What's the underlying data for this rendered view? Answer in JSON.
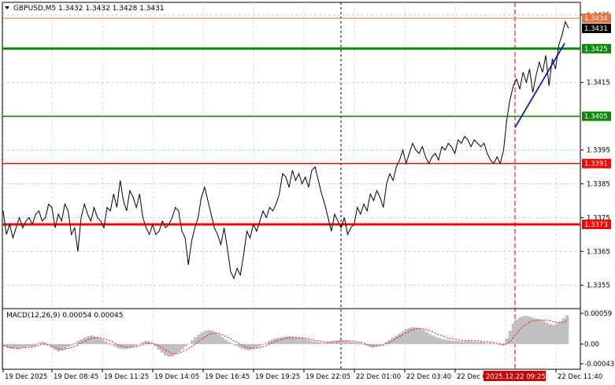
{
  "header": {
    "symbol_line": "GBPUSD,M5  1.3432 1.3432 1.3428 1.3431"
  },
  "macd": {
    "label": "MACD(12,26,9) 0.00054 0.00045",
    "ticks": [
      "0.00059",
      "0.00",
      "-0.00043"
    ]
  },
  "price_axis": {
    "ticks": [
      "1.3435",
      "1.3415",
      "1.3395",
      "1.3385",
      "1.3375",
      "1.3365",
      "1.3355"
    ]
  },
  "levels": [
    {
      "name": "ask",
      "value": "1.3434",
      "color": "#e8733a"
    },
    {
      "name": "bid",
      "value": "1.3431",
      "color": "#000000"
    },
    {
      "name": "resistance-green-top",
      "value": "1.3425",
      "color": "#0a8a0a"
    },
    {
      "name": "support-green",
      "value": "1.3405",
      "color": "#0a8a0a"
    },
    {
      "name": "support-red-top",
      "value": "1.3391",
      "color": "#ff0000"
    },
    {
      "name": "support-red-bottom",
      "value": "1.3373",
      "color": "#ff0000"
    }
  ],
  "time_axis": {
    "labels": [
      "19 Dec 2025",
      "19 Dec 08:45",
      "19 Dec 11:25",
      "19 Dec 14:05",
      "19 Dec 16:45",
      "19 Dec 19:25",
      "19 Dec 22:05",
      "22 Dec 01:00",
      "22 Dec 03:40",
      "22 Dec 06:20",
      "22 Dec 11:40"
    ],
    "highlight": "2025.12.22 09:25"
  },
  "chart_data": {
    "type": "line",
    "instrument": "GBPUSD",
    "timeframe": "M5",
    "ylim": [
      1.3349,
      1.3438
    ],
    "series": [
      {
        "values": [
          1.3377,
          1.337,
          1.3373,
          1.3369,
          1.3372,
          1.3375,
          1.3372,
          1.3374,
          1.3375,
          1.3373,
          1.3376,
          1.3377,
          1.3374,
          1.3375,
          1.3379,
          1.3378,
          1.3372,
          1.3376,
          1.3374,
          1.3379,
          1.3377,
          1.337,
          1.3372,
          1.3365,
          1.3375,
          1.3379,
          1.3376,
          1.3374,
          1.3378,
          1.3375,
          1.3374,
          1.3372,
          1.3378,
          1.3377,
          1.3382,
          1.3378,
          1.3386,
          1.338,
          1.3377,
          1.3383,
          1.3381,
          1.3378,
          1.3382,
          1.3375,
          1.3372,
          1.337,
          1.3373,
          1.337,
          1.3371,
          1.3374,
          1.3372,
          1.3373,
          1.3375,
          1.3378,
          1.3377,
          1.3371,
          1.3369,
          1.3361,
          1.3368,
          1.3372,
          1.3375,
          1.3381,
          1.3384,
          1.338,
          1.3376,
          1.3372,
          1.337,
          1.3367,
          1.3372,
          1.3366,
          1.3359,
          1.3357,
          1.336,
          1.3358,
          1.3364,
          1.3371,
          1.3369,
          1.3373,
          1.3371,
          1.3374,
          1.3377,
          1.3375,
          1.3378,
          1.3377,
          1.3379,
          1.3382,
          1.3388,
          1.3387,
          1.3384,
          1.3389,
          1.3386,
          1.3388,
          1.3385,
          1.3387,
          1.3384,
          1.3389,
          1.339,
          1.3386,
          1.3382,
          1.3379,
          1.3375,
          1.3371,
          1.3376,
          1.3374,
          1.3372,
          1.3375,
          1.337,
          1.3372,
          1.3373,
          1.3378,
          1.3376,
          1.3379,
          1.3377,
          1.3382,
          1.338,
          1.3383,
          1.3381,
          1.3378,
          1.3385,
          1.3388,
          1.3386,
          1.339,
          1.3392,
          1.3395,
          1.3391,
          1.3394,
          1.3397,
          1.3395,
          1.3394,
          1.3396,
          1.3393,
          1.3391,
          1.3393,
          1.3394,
          1.3392,
          1.3396,
          1.3395,
          1.3397,
          1.3396,
          1.3394,
          1.3398,
          1.3397,
          1.3399,
          1.3398,
          1.3396,
          1.3398,
          1.3397,
          1.3396,
          1.3397,
          1.3394,
          1.3392,
          1.3391,
          1.3393,
          1.3391,
          1.3395,
          1.3404,
          1.341,
          1.3414,
          1.3416,
          1.3413,
          1.3418,
          1.3415,
          1.3419,
          1.3412,
          1.3417,
          1.3421,
          1.3418,
          1.3423,
          1.3414,
          1.3422,
          1.3419,
          1.3426,
          1.3429,
          1.3433,
          1.3431
        ]
      }
    ],
    "macd_values": [
      -5e-05,
      -8e-05,
      -0.0001,
      -9e-05,
      -0.00011,
      -8e-05,
      -7e-05,
      -5e-05,
      -6e-05,
      -4e-05,
      2e-05,
      4e-05,
      3e-05,
      -2e-05,
      -8e-05,
      -0.00012,
      -0.00015,
      -0.00013,
      -0.0001,
      -6e-05,
      -3e-05,
      2e-05,
      6e-05,
      9e-05,
      0.00012,
      0.00015,
      0.00016,
      0.00014,
      0.00012,
      9e-05,
      5e-05,
      2e-05,
      -2e-05,
      -6e-05,
      -9e-05,
      -0.0001,
      -0.00011,
      -9e-05,
      -7e-05,
      -4e-05,
      -1e-05,
      3e-05,
      6e-05,
      5e-05,
      2e-05,
      -5e-05,
      -0.00012,
      -0.00018,
      -0.00024,
      -0.00027,
      -0.00026,
      -0.00022,
      -0.00017,
      -0.00011,
      -5e-05,
      1e-05,
      7e-05,
      0.00013,
      0.00018,
      0.00022,
      0.00025,
      0.00026,
      0.00025,
      0.00022,
      0.00018,
      0.00013,
      8e-05,
      4e-05,
      1e-05,
      -3e-05,
      -7e-05,
      -0.0001,
      -0.00012,
      -0.00013,
      -0.00011,
      -8e-05,
      -5e-05,
      -2e-05,
      2e-05,
      6e-05,
      9e-05,
      0.00011,
      0.00012,
      0.00013,
      0.00014,
      0.00015,
      0.00014,
      0.00013,
      0.00012,
      0.00011,
      9e-05,
      7e-05,
      5e-05,
      4e-05,
      3e-05,
      2e-05,
      3e-05,
      4e-05,
      5e-05,
      6e-05,
      7e-05,
      7e-05,
      6e-05,
      5e-05,
      4e-05,
      3e-05,
      2e-05,
      0.0,
      -3e-05,
      -6e-05,
      -8e-05,
      -6e-05,
      -3e-05,
      0.0,
      4e-05,
      8e-05,
      0.00012,
      0.00016,
      0.0002,
      0.00024,
      0.00028,
      0.0003,
      0.00032,
      0.00031,
      0.0003,
      0.00027,
      0.00023,
      0.00019,
      0.00016,
      0.00013,
      0.00011,
      9e-05,
      8e-05,
      7e-05,
      6e-05,
      6e-05,
      5e-05,
      5e-05,
      6e-05,
      6e-05,
      5e-05,
      4e-05,
      4e-05,
      3e-05,
      2e-05,
      2e-05,
      1e-05,
      0.0,
      -2e-05,
      -3e-05,
      0.0001,
      0.00025,
      0.00038,
      0.00046,
      0.0005,
      0.00052,
      0.00053,
      0.00051,
      0.00049,
      0.00047,
      0.00046,
      0.00044,
      0.0004,
      0.00037,
      0.00036,
      0.00038,
      0.00042,
      0.00048,
      0.00054
    ],
    "signal_values": [
      -4e-05,
      -5e-05,
      -7e-05,
      -8e-05,
      -9e-05,
      -9e-05,
      -8e-05,
      -7e-05,
      -7e-05,
      -6e-05,
      -4e-05,
      -2e-05,
      0.0,
      -1e-05,
      -3e-05,
      -6e-05,
      -9e-05,
      -0.00011,
      -0.00011,
      -0.0001,
      -8e-05,
      -6e-05,
      -3e-05,
      1e-05,
      4e-05,
      7e-05,
      0.0001,
      0.00012,
      0.00012,
      0.00012,
      0.0001,
      8e-05,
      6e-05,
      3e-05,
      0.0,
      -3e-05,
      -5e-05,
      -7e-05,
      -7e-05,
      -6e-05,
      -5e-05,
      -3e-05,
      -1e-05,
      1e-05,
      2e-05,
      1e-05,
      -2e-05,
      -6e-05,
      -0.0001,
      -0.00014,
      -0.00018,
      -0.0002,
      -0.0002,
      -0.00018,
      -0.00015,
      -0.00011,
      -7e-05,
      -2e-05,
      3e-05,
      8e-05,
      0.00012,
      0.00016,
      0.00019,
      0.0002,
      0.0002,
      0.00019,
      0.00016,
      0.00013,
      0.0001,
      6e-05,
      3e-05,
      -1e-05,
      -4e-05,
      -7e-05,
      -8e-05,
      -9e-05,
      -8e-05,
      -7e-05,
      -5e-05,
      -2e-05,
      1e-05,
      4e-05,
      6e-05,
      8e-05,
      0.0001,
      0.00011,
      0.00012,
      0.00012,
      0.00012,
      0.00012,
      0.00011,
      0.0001,
      9e-05,
      7e-05,
      6e-05,
      5e-05,
      4e-05,
      4e-05,
      4e-05,
      5e-05,
      5e-05,
      6e-05,
      6e-05,
      6e-05,
      6e-05,
      5e-05,
      4e-05,
      3e-05,
      1e-05,
      -1e-05,
      -3e-05,
      -4e-05,
      -4e-05,
      -3e-05,
      -1e-05,
      2e-05,
      5e-05,
      9e-05,
      0.00013,
      0.00016,
      0.0002,
      0.00023,
      0.00026,
      0.00028,
      0.00029,
      0.00029,
      0.00028,
      0.00026,
      0.00024,
      0.00021,
      0.00018,
      0.00016,
      0.00013,
      0.00011,
      0.0001,
      9e-05,
      8e-05,
      7e-05,
      7e-05,
      7e-05,
      7e-05,
      6e-05,
      6e-05,
      5e-05,
      4e-05,
      4e-05,
      3e-05,
      2e-05,
      1e-05,
      0.0,
      -1e-05,
      2e-05,
      8e-05,
      0.00016,
      0.00024,
      0.00031,
      0.00036,
      0.0004,
      0.00043,
      0.00044,
      0.00045,
      0.00045,
      0.00045,
      0.00044,
      0.00043,
      0.00041,
      0.0004,
      0.0004,
      0.00042,
      0.00045
    ]
  }
}
